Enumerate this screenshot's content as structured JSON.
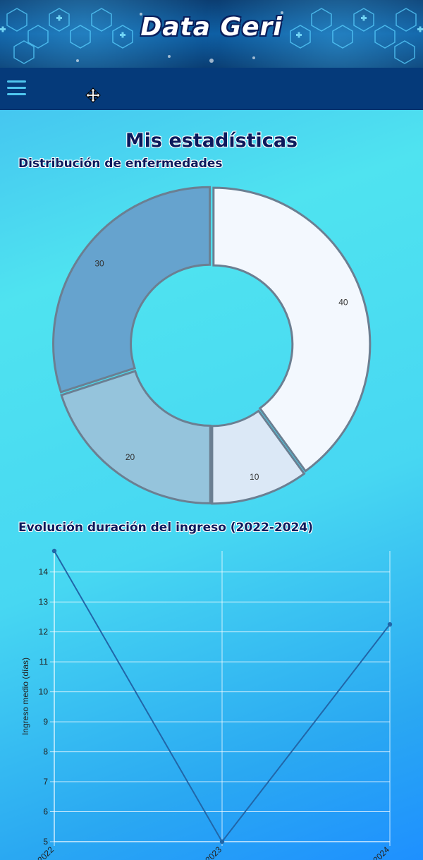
{
  "header": {
    "title": "Data Geri"
  },
  "page": {
    "title": "Mis estadísticas"
  },
  "sections": {
    "diseases_title": "Distribución de enfermedades",
    "stay_title": "Evolución duración del ingreso (2022-2024)"
  },
  "chart_data": [
    {
      "type": "pie",
      "title": "Distribución de enfermedades",
      "donut": true,
      "values": [
        40,
        10,
        20,
        30
      ],
      "colors": [
        "#f3f8fe",
        "#dbe8f6",
        "#95c4dc",
        "#66a3ce"
      ],
      "data_labels": [
        "40",
        "10",
        "20",
        "30"
      ]
    },
    {
      "type": "line",
      "title": "Evolución duración del ingreso (2022-2024)",
      "x": [
        "2022",
        "2023",
        "2024"
      ],
      "series": [
        {
          "values": [
            14.7,
            5.0,
            12.25
          ]
        }
      ],
      "ylabel": "Ingreso medio (días)",
      "ylim": [
        5,
        14.7
      ],
      "yticks": [
        5,
        6,
        7,
        8,
        9,
        10,
        11,
        12,
        13,
        14
      ],
      "grid": true,
      "line_color": "#2166a8"
    }
  ]
}
